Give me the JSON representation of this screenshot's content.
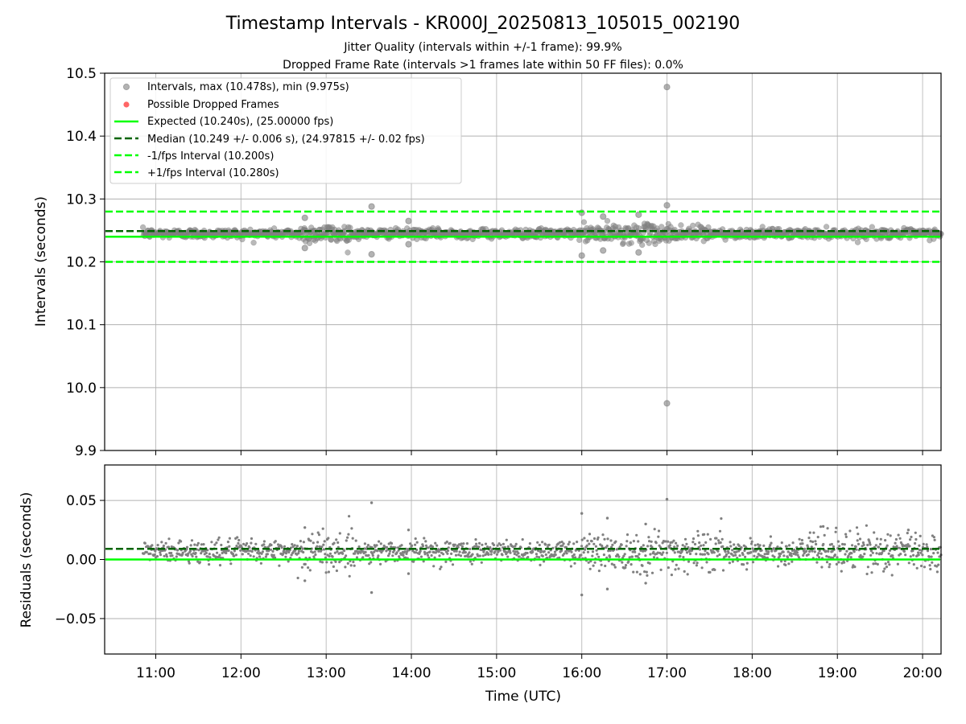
{
  "figure": {
    "title": "Timestamp Intervals - KR000J_20250813_105015_002190",
    "subtitle_1": "Jitter Quality (intervals within +/-1 frame): 99.9%",
    "subtitle_2": "Dropped Frame Rate (intervals >1 frames late within 50 FF files): 0.0%",
    "colors": {
      "points": "#808080",
      "dropped": "#ff0000",
      "expected": "#00ff00",
      "median": "#006400",
      "fps_interval": "#00ff00",
      "grid": "#b0b0b0"
    }
  },
  "chart_data": [
    {
      "type": "scatter",
      "panel": "top",
      "title": "",
      "xlabel": "",
      "ylabel": "Intervals (seconds)",
      "xlim": [
        "10:24",
        "20:13"
      ],
      "ylim": [
        9.9,
        10.5
      ],
      "yticks": [
        "9.9",
        "10.0",
        "10.1",
        "10.2",
        "10.3",
        "10.4",
        "10.5"
      ],
      "xticks": [
        "11:00",
        "12:00",
        "13:00",
        "14:00",
        "15:00",
        "16:00",
        "17:00",
        "18:00",
        "19:00",
        "20:00"
      ],
      "grid": true,
      "legend_position": "top-left",
      "legend": [
        "Intervals, max (10.478s), min (9.975s)",
        "Possible Dropped Frames",
        "Expected (10.240s), (25.00000 fps)",
        "Median (10.249 +/- 0.006 s), (24.97815 +/- 0.02 fps)",
        "-1/fps Interval (10.200s)",
        "+1/fps Interval (10.280s)"
      ],
      "reference_lines": {
        "expected": 10.24,
        "median": 10.249,
        "minus_1_fps": 10.2,
        "plus_1_fps": 10.28
      },
      "series": [
        {
          "name": "Intervals, max (10.478s), min (9.975s)",
          "x_range": [
            "10:51",
            "20:13"
          ],
          "baseline": 10.245,
          "spread": 0.006,
          "count_approx": 3300,
          "points": [
            {
              "x": "17:00",
              "y": 10.478
            },
            {
              "x": "17:00",
              "y": 9.975
            },
            {
              "x": "17:00",
              "y": 10.29
            },
            {
              "x": "13:32",
              "y": 10.288
            },
            {
              "x": "13:32",
              "y": 10.212
            },
            {
              "x": "16:00",
              "y": 10.21
            },
            {
              "x": "16:00",
              "y": 10.278
            },
            {
              "x": "13:58",
              "y": 10.265
            },
            {
              "x": "13:58",
              "y": 10.228
            },
            {
              "x": "12:45",
              "y": 10.27
            },
            {
              "x": "12:45",
              "y": 10.222
            },
            {
              "x": "16:40",
              "y": 10.275
            },
            {
              "x": "16:40",
              "y": 10.215
            },
            {
              "x": "16:15",
              "y": 10.272
            },
            {
              "x": "16:15",
              "y": 10.218
            }
          ]
        }
      ]
    },
    {
      "type": "scatter",
      "panel": "bottom",
      "title": "",
      "xlabel": "Time (UTC)",
      "ylabel": "Residuals (seconds)",
      "xlim": [
        "10:24",
        "20:13"
      ],
      "ylim": [
        -0.08,
        0.08
      ],
      "yticks": [
        "−0.05",
        "0.00",
        "0.05"
      ],
      "xticks": [
        "11:00",
        "12:00",
        "13:00",
        "14:00",
        "15:00",
        "16:00",
        "17:00",
        "18:00",
        "19:00",
        "20:00"
      ],
      "grid": true,
      "reference_lines": {
        "expected": 0.0,
        "median": 0.009
      },
      "series": [
        {
          "name": "Residuals",
          "x_range": [
            "10:51",
            "20:13"
          ],
          "baseline": 0.007,
          "spread": 0.006,
          "count_approx": 3300,
          "points": [
            {
              "x": "17:00",
              "y": 0.051
            },
            {
              "x": "13:32",
              "y": 0.048
            },
            {
              "x": "13:32",
              "y": -0.028
            },
            {
              "x": "16:00",
              "y": 0.039
            },
            {
              "x": "16:00",
              "y": -0.03
            },
            {
              "x": "13:58",
              "y": 0.025
            },
            {
              "x": "13:58",
              "y": -0.012
            },
            {
              "x": "16:18",
              "y": 0.035
            },
            {
              "x": "16:18",
              "y": -0.025
            },
            {
              "x": "12:45",
              "y": 0.027
            },
            {
              "x": "12:45",
              "y": -0.018
            },
            {
              "x": "16:45",
              "y": 0.03
            },
            {
              "x": "16:45",
              "y": -0.02
            },
            {
              "x": "18:50",
              "y": 0.028
            },
            {
              "x": "19:50",
              "y": 0.025
            }
          ]
        }
      ]
    }
  ]
}
